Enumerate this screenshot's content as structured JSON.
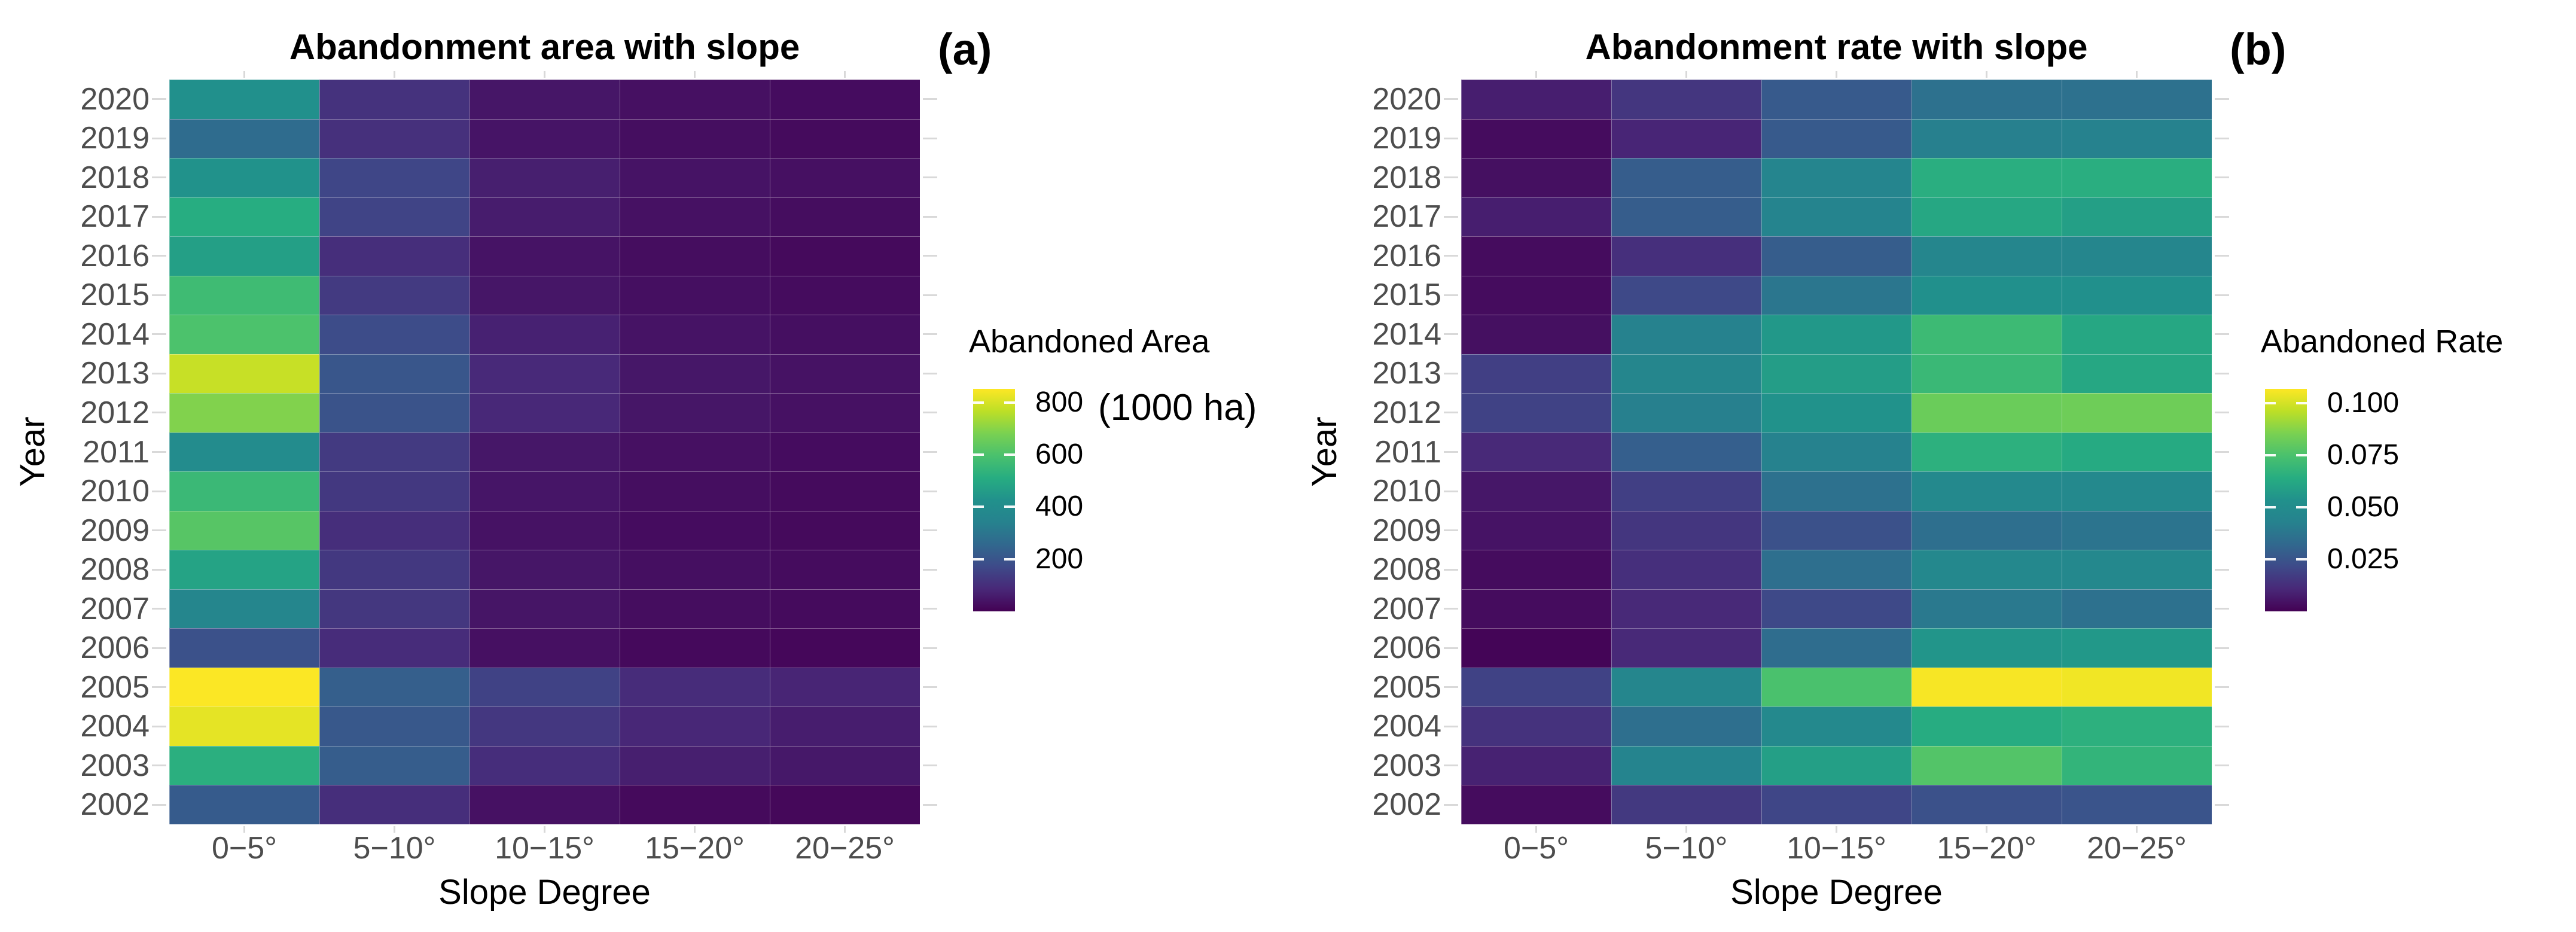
{
  "colors": {
    "background": "#ffffff",
    "axis_text": "#4d4d4d",
    "tick_mark": "#d9d9d9",
    "title_text": "#000000",
    "viridis_stops": [
      [
        0.0,
        "#440154"
      ],
      [
        0.1,
        "#482878"
      ],
      [
        0.2,
        "#3e4a89"
      ],
      [
        0.3,
        "#31688e"
      ],
      [
        0.4,
        "#26828e"
      ],
      [
        0.5,
        "#21918c"
      ],
      [
        0.6,
        "#27ad81"
      ],
      [
        0.7,
        "#4ac16d"
      ],
      [
        0.8,
        "#7ad151"
      ],
      [
        0.9,
        "#bddf26"
      ],
      [
        1.0,
        "#fde725"
      ]
    ]
  },
  "chart_data": [
    {
      "type": "heatmap",
      "panel": "(a)",
      "title": "Abandonment area with slope",
      "xlabel": "Slope Degree",
      "ylabel": "Year",
      "columns": [
        "0−5°",
        "5−10°",
        "10−15°",
        "15−20°",
        "20−25°"
      ],
      "rows": [
        "2020",
        "2019",
        "2018",
        "2017",
        "2016",
        "2015",
        "2014",
        "2013",
        "2012",
        "2011",
        "2010",
        "2009",
        "2008",
        "2007",
        "2006",
        "2005",
        "2004",
        "2003",
        "2002"
      ],
      "values": [
        [
          420,
          110,
          45,
          32,
          25
        ],
        [
          270,
          105,
          42,
          28,
          22
        ],
        [
          430,
          160,
          65,
          40,
          32
        ],
        [
          510,
          155,
          58,
          35,
          27
        ],
        [
          470,
          100,
          40,
          26,
          20
        ],
        [
          570,
          130,
          46,
          30,
          24
        ],
        [
          600,
          175,
          70,
          40,
          31
        ],
        [
          780,
          205,
          88,
          48,
          38
        ],
        [
          690,
          195,
          85,
          45,
          35
        ],
        [
          400,
          130,
          48,
          32,
          25
        ],
        [
          560,
          125,
          44,
          28,
          22
        ],
        [
          620,
          100,
          38,
          25,
          19
        ],
        [
          480,
          125,
          45,
          30,
          24
        ],
        [
          365,
          122,
          43,
          27,
          21
        ],
        [
          190,
          95,
          33,
          18,
          14
        ],
        [
          850,
          230,
          150,
          95,
          78
        ],
        [
          820,
          210,
          123,
          82,
          62
        ],
        [
          520,
          225,
          98,
          65,
          50
        ],
        [
          220,
          100,
          35,
          20,
          15
        ]
      ],
      "vmin": 0,
      "vmax": 852,
      "colormap": "viridis",
      "grid": false,
      "legend": {
        "position": "right",
        "title": "Abandoned Area",
        "note": "(1000 ha)",
        "ticks": [
          800,
          600,
          400,
          200
        ],
        "tick_labels": [
          "800",
          "600",
          "400",
          "200"
        ]
      }
    },
    {
      "type": "heatmap",
      "panel": "(b)",
      "title": "Abandonment rate with slope",
      "xlabel": "Slope Degree",
      "ylabel": "Year",
      "columns": [
        "0−5°",
        "5−10°",
        "10−15°",
        "15−20°",
        "20−25°"
      ],
      "rows": [
        "2020",
        "2019",
        "2018",
        "2017",
        "2016",
        "2015",
        "2014",
        "2013",
        "2012",
        "2011",
        "2010",
        "2009",
        "2008",
        "2007",
        "2006",
        "2005",
        "2004",
        "2003",
        "2002"
      ],
      "values": [
        [
          0.008,
          0.015,
          0.027,
          0.036,
          0.036
        ],
        [
          0.003,
          0.01,
          0.027,
          0.042,
          0.043
        ],
        [
          0.004,
          0.028,
          0.045,
          0.065,
          0.065
        ],
        [
          0.008,
          0.028,
          0.044,
          0.062,
          0.059
        ],
        [
          0.003,
          0.013,
          0.028,
          0.046,
          0.046
        ],
        [
          0.003,
          0.021,
          0.038,
          0.053,
          0.053
        ],
        [
          0.004,
          0.043,
          0.056,
          0.071,
          0.062
        ],
        [
          0.018,
          0.046,
          0.058,
          0.07,
          0.062
        ],
        [
          0.019,
          0.042,
          0.054,
          0.082,
          0.083
        ],
        [
          0.011,
          0.029,
          0.043,
          0.066,
          0.063
        ],
        [
          0.006,
          0.018,
          0.036,
          0.048,
          0.048
        ],
        [
          0.005,
          0.015,
          0.024,
          0.035,
          0.037
        ],
        [
          0.003,
          0.013,
          0.035,
          0.047,
          0.047
        ],
        [
          0.003,
          0.011,
          0.021,
          0.039,
          0.036
        ],
        [
          0.001,
          0.011,
          0.034,
          0.055,
          0.056
        ],
        [
          0.019,
          0.046,
          0.075,
          0.106,
          0.105
        ],
        [
          0.014,
          0.035,
          0.048,
          0.064,
          0.066
        ],
        [
          0.009,
          0.044,
          0.059,
          0.077,
          0.068
        ],
        [
          0.003,
          0.016,
          0.02,
          0.024,
          0.025
        ]
      ],
      "vmin": 0,
      "vmax": 0.107,
      "colormap": "viridis",
      "grid": false,
      "legend": {
        "position": "right",
        "title": "Abandoned Rate",
        "ticks": [
          0.1,
          0.075,
          0.05,
          0.025
        ],
        "tick_labels": [
          "0.100",
          "0.075",
          "0.050",
          "0.025"
        ]
      }
    }
  ]
}
